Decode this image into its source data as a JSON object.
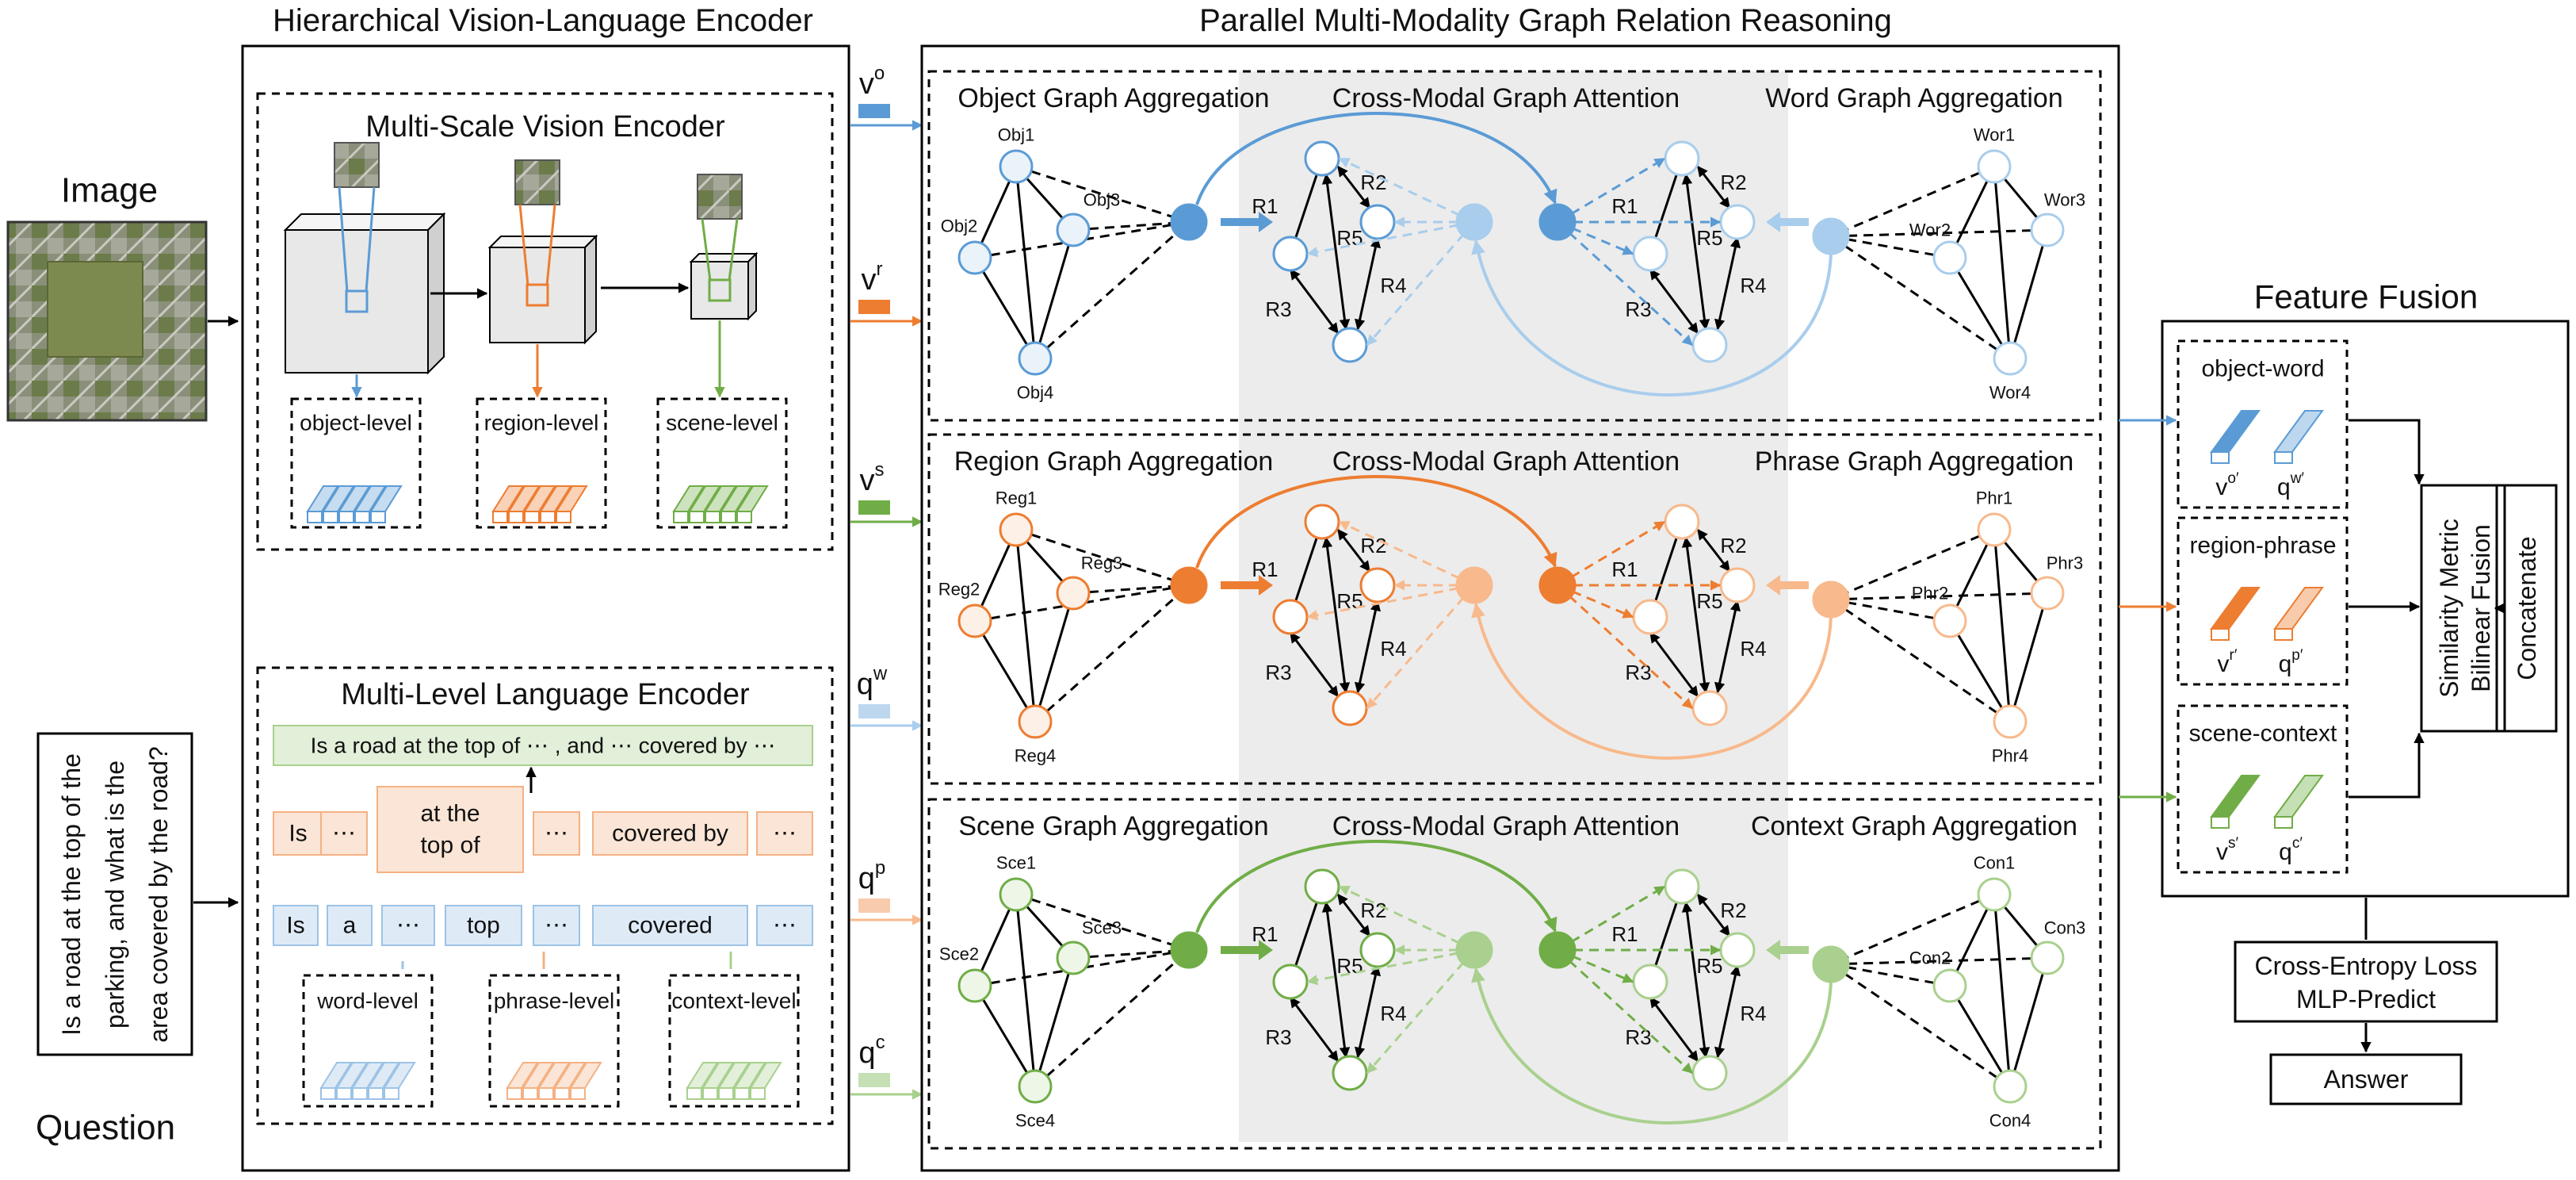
{
  "titles": {
    "encoder": "Hierarchical Vision-Language Encoder",
    "reasoning": "Parallel Multi-Modality Graph Relation Reasoning",
    "fusion": "Feature Fusion"
  },
  "inputs": {
    "image_label": "Image",
    "question_label": "Question",
    "question_text": [
      "Is a road at the top of the",
      "parking, and what is the",
      "area covered by the road?"
    ]
  },
  "vision_encoder": {
    "title": "Multi-Scale Vision Encoder",
    "levels": [
      "object-level",
      "region-level",
      "scene-level"
    ]
  },
  "language_encoder": {
    "title": "Multi-Level Language Encoder",
    "sentence": "Is a road at the top of ⋯ , and ⋯ covered by ⋯",
    "phrase_tokens": [
      "Is",
      "⋯",
      "at the top of",
      "⋯",
      "covered by",
      "⋯"
    ],
    "word_tokens": [
      "Is",
      "a",
      "⋯",
      "top",
      "⋯",
      "covered",
      "⋯"
    ],
    "levels": [
      "word-level",
      "phrase-level",
      "context-level"
    ]
  },
  "features": [
    "v",
    "v",
    "v",
    "q",
    "q",
    "q"
  ],
  "feature_superscripts": [
    "o",
    "r",
    "s",
    "w",
    "p",
    "c"
  ],
  "rows": [
    {
      "left_title": "Object Graph Aggregation",
      "mid_title": "Cross-Modal Graph Attention",
      "right_title": "Word Graph Aggregation",
      "left_nodes": [
        "Obj1",
        "Obj2",
        "Obj3",
        "Obj4"
      ],
      "right_nodes": [
        "Wor1",
        "Wor2",
        "Wor3",
        "Wor4"
      ],
      "relations": [
        "R1",
        "R2",
        "R5",
        "R3",
        "R4"
      ]
    },
    {
      "left_title": "Region Graph Aggregation",
      "mid_title": "Cross-Modal Graph Attention",
      "right_title": "Phrase Graph Aggregation",
      "left_nodes": [
        "Reg1",
        "Reg2",
        "Reg3",
        "Reg4"
      ],
      "right_nodes": [
        "Phr1",
        "Phr2",
        "Phr3",
        "Phr4"
      ],
      "relations": [
        "R1",
        "R2",
        "R5",
        "R3",
        "R4"
      ]
    },
    {
      "left_title": "Scene Graph Aggregation",
      "mid_title": "Cross-Modal Graph Attention",
      "right_title": "Context Graph Aggregation",
      "left_nodes": [
        "Sce1",
        "Sce2",
        "Sce3",
        "Sce4"
      ],
      "right_nodes": [
        "Con1",
        "Con2",
        "Con3",
        "Con4"
      ],
      "relations": [
        "R1",
        "R2",
        "R5",
        "R3",
        "R4"
      ]
    }
  ],
  "fusion": {
    "groups": [
      {
        "label": "object-word",
        "v_sup": "o′",
        "q_sup": "w′"
      },
      {
        "label": "region-phrase",
        "v_sup": "r′",
        "q_sup": "p′"
      },
      {
        "label": "scene-context",
        "v_sup": "s′",
        "q_sup": "c′"
      }
    ],
    "v_base": "v",
    "q_base": "q",
    "similarity": [
      "Similarity Metric",
      "Bilinear Fusion"
    ],
    "concatenate": "Concatenate",
    "loss": [
      "Cross-Entropy Loss",
      "MLP-Predict"
    ],
    "answer": "Answer"
  },
  "colors": {
    "blue": "#5b9bd5",
    "blue_light": "#a9cdec",
    "orange": "#ed7d31",
    "orange_light": "#f8b98c",
    "green": "#70ad47",
    "green_light": "#a9d08e",
    "gray_panel": "#ececec"
  }
}
